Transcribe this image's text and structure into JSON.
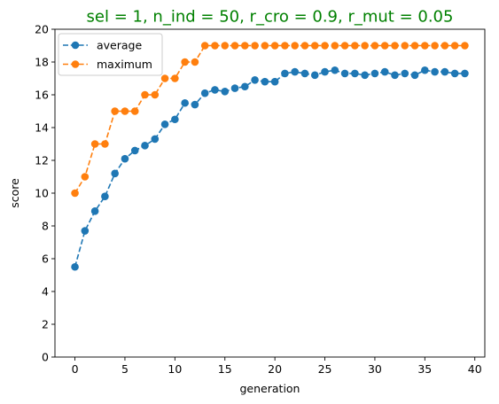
{
  "chart_data": {
    "type": "line",
    "title": "sel = 1, n_ind = 50, r_cro = 0.9, r_mut = 0.05",
    "title_color": "#008000",
    "xlabel": "generation",
    "ylabel": "score",
    "xlim": [
      -2,
      41
    ],
    "ylim": [
      0,
      20
    ],
    "xticks": [
      0,
      5,
      10,
      15,
      20,
      25,
      30,
      35,
      40
    ],
    "yticks": [
      0,
      2,
      4,
      6,
      8,
      10,
      12,
      14,
      16,
      18,
      20
    ],
    "grid": false,
    "legend_position": "top-left",
    "x": [
      0,
      1,
      2,
      3,
      4,
      5,
      6,
      7,
      8,
      9,
      10,
      11,
      12,
      13,
      14,
      15,
      16,
      17,
      18,
      19,
      20,
      21,
      22,
      23,
      24,
      25,
      26,
      27,
      28,
      29,
      30,
      31,
      32,
      33,
      34,
      35,
      36,
      37,
      38,
      39
    ],
    "series": [
      {
        "name": "average",
        "color": "#1f77b4",
        "values": [
          5.5,
          7.7,
          8.9,
          9.8,
          11.2,
          12.1,
          12.6,
          12.9,
          13.3,
          14.2,
          14.5,
          15.5,
          15.4,
          16.1,
          16.3,
          16.2,
          16.4,
          16.5,
          16.9,
          16.8,
          16.8,
          17.3,
          17.4,
          17.3,
          17.2,
          17.4,
          17.5,
          17.3,
          17.3,
          17.2,
          17.3,
          17.4,
          17.2,
          17.3,
          17.2,
          17.5,
          17.4,
          17.4,
          17.3,
          17.3
        ]
      },
      {
        "name": "maximum",
        "color": "#ff7f0e",
        "values": [
          10,
          11,
          13,
          13,
          15,
          15,
          15,
          16,
          16,
          17,
          17,
          18,
          18,
          19,
          19,
          19,
          19,
          19,
          19,
          19,
          19,
          19,
          19,
          19,
          19,
          19,
          19,
          19,
          19,
          19,
          19,
          19,
          19,
          19,
          19,
          19,
          19,
          19,
          19,
          19
        ]
      }
    ]
  }
}
